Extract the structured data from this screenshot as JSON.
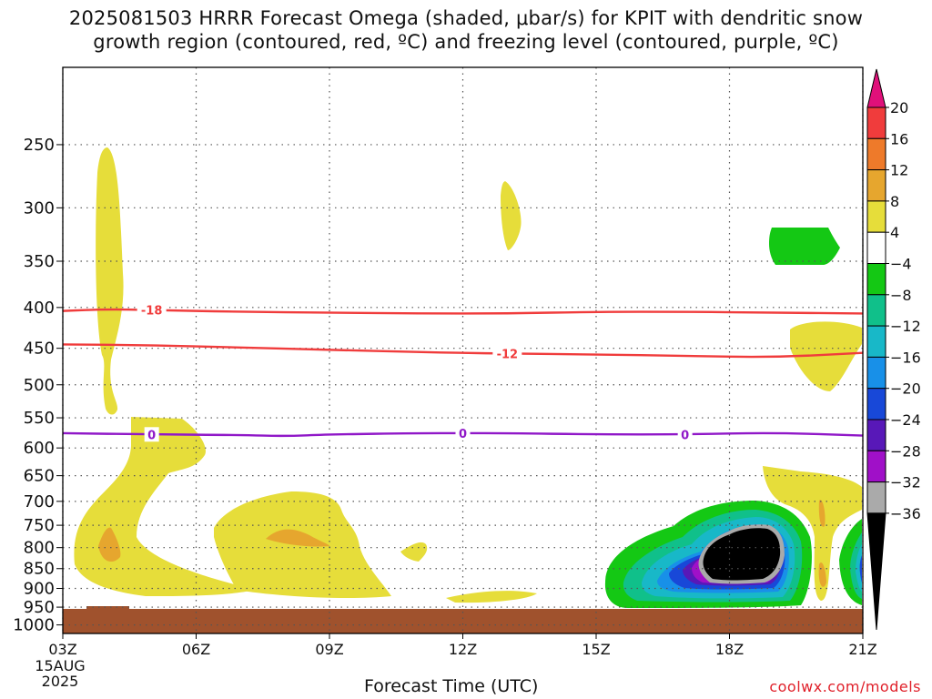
{
  "title_line1": "2025081503 HRRR Forecast Omega (shaded, μbar/s) for KPIT with dendritic snow",
  "title_line2": "growth region (contoured, red, ºC) and freezing level (contoured, purple, ºC)",
  "xlabel": "Forecast Time (UTC)",
  "credit": "coolwx.com/models",
  "chart_data": {
    "type": "heatmap",
    "title": "2025081503 HRRR Forecast Omega (shaded, μbar/s) for KPIT with dendritic snow growth region (contoured, red, ºC) and freezing level (contoured, purple, ºC)",
    "xlabel": "Forecast Time (UTC)",
    "ylabel": "",
    "x_ticks": [
      {
        "hour": 3,
        "label": "03Z",
        "sub": [
          "15AUG",
          "2025"
        ]
      },
      {
        "hour": 6,
        "label": "06Z"
      },
      {
        "hour": 9,
        "label": "09Z"
      },
      {
        "hour": 12,
        "label": "12Z"
      },
      {
        "hour": 15,
        "label": "15Z"
      },
      {
        "hour": 18,
        "label": "18Z"
      },
      {
        "hour": 21,
        "label": "21Z"
      }
    ],
    "xlim": [
      3,
      21
    ],
    "y_ticks": [
      250,
      300,
      350,
      400,
      450,
      500,
      550,
      600,
      650,
      700,
      750,
      800,
      850,
      900,
      950,
      1000
    ],
    "ylim_hPa": [
      200,
      1025
    ],
    "y_scale": "log",
    "grid": true,
    "colorbar": {
      "labels": [
        "20",
        "16",
        "12",
        "8",
        "4",
        "−4",
        "−8",
        "−12",
        "−16",
        "−20",
        "−24",
        "−28",
        "−32",
        "−36"
      ],
      "colors": [
        "#e0107a",
        "#f03c3c",
        "#ee7a2a",
        "#e6a62e",
        "#e6dd3a",
        "#ffffff",
        "#14c814",
        "#10c08a",
        "#18b8c8",
        "#1890e8",
        "#1848d8",
        "#5818b8",
        "#a010c8",
        "#aaaaaa",
        "#000000"
      ]
    },
    "contours": [
      {
        "name": "-18",
        "color": "#f03c3c",
        "points": [
          [
            3,
            404
          ],
          [
            4,
            402
          ],
          [
            5,
            403
          ],
          [
            7,
            405
          ],
          [
            9,
            406
          ],
          [
            11,
            407
          ],
          [
            13,
            407
          ],
          [
            15,
            405
          ],
          [
            17,
            405
          ],
          [
            19,
            406
          ],
          [
            21,
            407
          ]
        ],
        "labels_at": [
          5
        ]
      },
      {
        "name": "-12",
        "color": "#f03c3c",
        "points": [
          [
            3,
            445
          ],
          [
            5,
            446
          ],
          [
            7,
            449
          ],
          [
            9,
            452
          ],
          [
            11,
            455
          ],
          [
            12,
            456
          ],
          [
            13,
            457
          ],
          [
            15,
            458
          ],
          [
            17,
            460
          ],
          [
            19,
            462
          ],
          [
            21,
            456
          ]
        ],
        "labels_at": [
          13
        ]
      },
      {
        "name": "0",
        "color": "#9018c8",
        "points": [
          [
            3,
            575
          ],
          [
            5,
            577
          ],
          [
            7,
            578
          ],
          [
            8,
            580
          ],
          [
            9,
            577
          ],
          [
            11,
            575
          ],
          [
            12,
            575
          ],
          [
            13,
            575
          ],
          [
            15,
            577
          ],
          [
            17,
            577
          ],
          [
            19,
            574
          ],
          [
            21,
            579
          ]
        ],
        "labels_at": [
          5,
          12,
          17
        ]
      }
    ],
    "shaded_regions": [
      {
        "level": "4 to 8",
        "color": "#e6dd3a"
      },
      {
        "level": "8 to 12",
        "color": "#e6a62e"
      },
      {
        "level": "-4 to -8",
        "color": "#14c814"
      },
      {
        "level": "-8 to -12",
        "color": "#10c08a"
      },
      {
        "level": "-12 to -16",
        "color": "#18b8c8"
      },
      {
        "level": "-16 to -20",
        "color": "#1890e8"
      },
      {
        "level": "-20 to -24",
        "color": "#1848d8"
      },
      {
        "level": "-24 to -28",
        "color": "#5818b8"
      },
      {
        "level": "-28 to -32",
        "color": "#a010c8"
      },
      {
        "level": "-32 to -36",
        "color": "#aaaaaa"
      },
      {
        "level": "< -36",
        "color": "#000000"
      }
    ],
    "ground_color": "#a0522d"
  }
}
